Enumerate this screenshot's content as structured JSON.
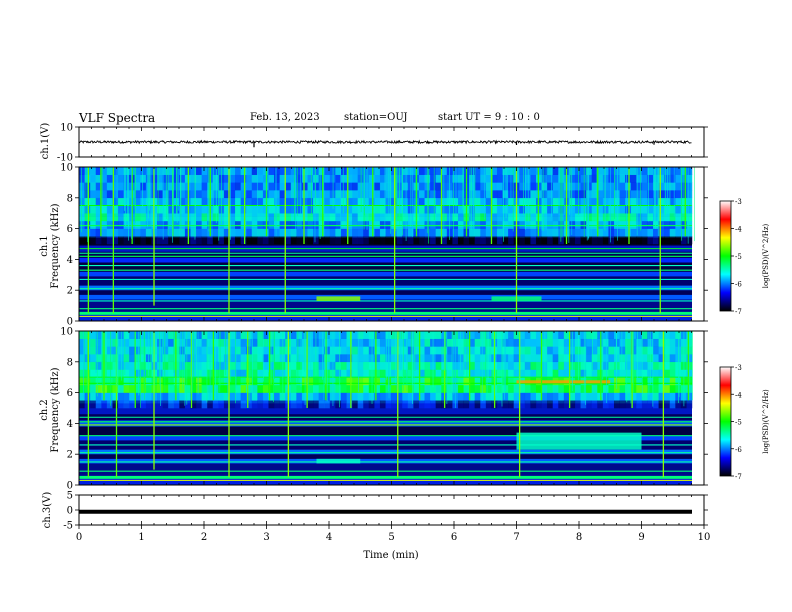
{
  "header": {
    "title": "VLF Spectra",
    "date": "Feb. 13, 2023",
    "station": "station=OUJ",
    "start": "start  UT =   9 : 10 : 0"
  },
  "colorbar": {
    "label": "log(PSD)(V^2/Hz)",
    "ticks": [
      "-3",
      "-4",
      "-5",
      "-6",
      "-7"
    ],
    "colors": [
      "#ffffff",
      "#ff0000",
      "#ffff00",
      "#00ff00",
      "#00ffff",
      "#0000ff",
      "#000000"
    ]
  },
  "chart_data": [
    {
      "type": "line",
      "name": "ch1-waveform",
      "ylabel": "ch.1(V)",
      "ylim": [
        -10,
        10
      ],
      "yticks": [
        "10",
        "-10"
      ],
      "xlim": [
        0,
        10
      ],
      "baseline": 0,
      "trace_color": "#000000",
      "spikes": [
        {
          "x": 2.8,
          "y": -3.5
        },
        {
          "x": 7.0,
          "y": -2.0
        },
        {
          "x": 9.2,
          "y": -1.8
        }
      ]
    },
    {
      "type": "heatmap",
      "name": "ch1-spectrogram",
      "ylabel_1": "ch.1",
      "ylabel_2": "Frequency (kHz)",
      "ylim": [
        0,
        10
      ],
      "xlim": [
        0,
        9.85
      ],
      "yticks": [
        "0",
        "2",
        "4",
        "6",
        "8",
        "10"
      ],
      "zlim": [
        -7,
        -3
      ],
      "bands": [
        {
          "f0": 0.0,
          "f1": 0.4,
          "level": -6.3
        },
        {
          "f0": 0.4,
          "f1": 0.6,
          "level": -5.0
        },
        {
          "f0": 0.6,
          "f1": 1.4,
          "level": -6.6
        },
        {
          "f0": 1.4,
          "f1": 1.7,
          "level": -6.0
        },
        {
          "f0": 1.7,
          "f1": 2.0,
          "level": -6.8
        },
        {
          "f0": 2.0,
          "f1": 2.3,
          "level": -5.9
        },
        {
          "f0": 2.3,
          "f1": 2.9,
          "level": -6.7
        },
        {
          "f0": 2.9,
          "f1": 3.2,
          "level": -6.1
        },
        {
          "f0": 3.2,
          "f1": 3.8,
          "level": -6.9
        },
        {
          "f0": 3.8,
          "f1": 4.1,
          "level": -6.2
        },
        {
          "f0": 4.1,
          "f1": 4.5,
          "level": -6.8
        },
        {
          "f0": 4.5,
          "f1": 4.9,
          "level": -6.4
        },
        {
          "f0": 4.9,
          "f1": 5.4,
          "level": -7.0
        },
        {
          "f0": 5.4,
          "f1": 6.1,
          "level": -5.8
        },
        {
          "f0": 6.1,
          "f1": 6.8,
          "level": -5.3
        },
        {
          "f0": 6.8,
          "f1": 8.0,
          "level": -5.6
        },
        {
          "f0": 8.0,
          "f1": 10.0,
          "level": -5.8
        }
      ],
      "lines": [
        {
          "f": 0.3,
          "level": -4.2
        },
        {
          "f": 0.8,
          "level": -5.0
        },
        {
          "f": 1.3,
          "level": -5.2
        },
        {
          "f": 2.1,
          "level": -5.1
        },
        {
          "f": 2.7,
          "level": -5.3
        },
        {
          "f": 3.3,
          "level": -5.0
        },
        {
          "f": 3.6,
          "level": -5.2
        },
        {
          "f": 4.2,
          "level": -4.9
        },
        {
          "f": 4.4,
          "level": -5.1
        },
        {
          "f": 4.7,
          "level": -4.8
        },
        {
          "f": 6.2,
          "level": -4.9
        },
        {
          "f": 7.5,
          "level": -4.7
        }
      ],
      "patches": [
        {
          "t0": 3.8,
          "t1": 4.5,
          "f0": 1.3,
          "f1": 1.6,
          "level": -4.4
        },
        {
          "t0": 6.6,
          "t1": 7.4,
          "f0": 1.3,
          "f1": 1.6,
          "level": -5.0
        }
      ],
      "bursts": [
        {
          "t": 0.15,
          "f0": 0.5,
          "level": -4.5
        },
        {
          "t": 0.35,
          "f0": 5.5,
          "level": -4.6
        },
        {
          "t": 0.55,
          "f0": 0.5,
          "level": -4.5
        },
        {
          "t": 0.85,
          "f0": 5.0,
          "level": -4.6
        },
        {
          "t": 1.2,
          "f0": 1.0,
          "level": -4.4
        },
        {
          "t": 1.5,
          "f0": 5.5,
          "level": -4.6
        },
        {
          "t": 1.75,
          "f0": 5.0,
          "level": -4.5
        },
        {
          "t": 2.1,
          "f0": 5.5,
          "level": -4.6
        },
        {
          "t": 2.4,
          "f0": 0.5,
          "level": -4.4
        },
        {
          "t": 2.65,
          "f0": 5.0,
          "level": -4.5
        },
        {
          "t": 3.0,
          "f0": 5.5,
          "level": -4.6
        },
        {
          "t": 3.3,
          "f0": 0.5,
          "level": -4.4
        },
        {
          "t": 3.6,
          "f0": 5.0,
          "level": -4.5
        },
        {
          "t": 3.9,
          "f0": 5.5,
          "level": -4.6
        },
        {
          "t": 4.3,
          "f0": 5.0,
          "level": -4.5
        },
        {
          "t": 4.7,
          "f0": 5.5,
          "level": -4.6
        },
        {
          "t": 5.05,
          "f0": 0.5,
          "level": -4.4
        },
        {
          "t": 5.4,
          "f0": 5.5,
          "level": -4.6
        },
        {
          "t": 5.8,
          "f0": 5.0,
          "level": -4.5
        },
        {
          "t": 6.2,
          "f0": 5.5,
          "level": -4.6
        },
        {
          "t": 6.6,
          "f0": 5.0,
          "level": -4.5
        },
        {
          "t": 7.0,
          "f0": 0.5,
          "level": -4.4
        },
        {
          "t": 7.35,
          "f0": 5.5,
          "level": -4.6
        },
        {
          "t": 7.8,
          "f0": 5.0,
          "level": -4.5
        },
        {
          "t": 8.3,
          "f0": 5.5,
          "level": -4.6
        },
        {
          "t": 8.8,
          "f0": 5.0,
          "level": -4.5
        },
        {
          "t": 9.3,
          "f0": 0.5,
          "level": -4.4
        },
        {
          "t": 9.7,
          "f0": 5.5,
          "level": -4.6
        }
      ]
    },
    {
      "type": "heatmap",
      "name": "ch2-spectrogram",
      "ylabel_1": "ch.2",
      "ylabel_2": "Frequency (kHz)",
      "ylim": [
        0,
        10
      ],
      "xlim": [
        0,
        9.85
      ],
      "yticks": [
        "0",
        "2",
        "4",
        "6",
        "8",
        "10"
      ],
      "zlim": [
        -7,
        -3
      ],
      "bands": [
        {
          "f0": 0.0,
          "f1": 0.4,
          "level": -6.3
        },
        {
          "f0": 0.4,
          "f1": 0.6,
          "level": -5.0
        },
        {
          "f0": 0.6,
          "f1": 1.4,
          "level": -6.6
        },
        {
          "f0": 1.4,
          "f1": 1.7,
          "level": -6.0
        },
        {
          "f0": 1.7,
          "f1": 2.0,
          "level": -6.8
        },
        {
          "f0": 2.0,
          "f1": 2.3,
          "level": -5.9
        },
        {
          "f0": 2.3,
          "f1": 2.9,
          "level": -6.7
        },
        {
          "f0": 2.9,
          "f1": 3.2,
          "level": -6.1
        },
        {
          "f0": 3.2,
          "f1": 3.8,
          "level": -6.9
        },
        {
          "f0": 3.8,
          "f1": 4.2,
          "level": -6.0
        },
        {
          "f0": 4.2,
          "f1": 4.6,
          "level": -6.8
        },
        {
          "f0": 4.6,
          "f1": 5.3,
          "level": -6.4
        },
        {
          "f0": 5.3,
          "f1": 6.0,
          "level": -5.6
        },
        {
          "f0": 6.0,
          "f1": 6.9,
          "level": -4.9
        },
        {
          "f0": 6.9,
          "f1": 8.0,
          "level": -5.3
        },
        {
          "f0": 8.0,
          "f1": 10.0,
          "level": -5.5
        }
      ],
      "lines": [
        {
          "f": 0.3,
          "level": -4.2
        },
        {
          "f": 0.9,
          "level": -5.0
        },
        {
          "f": 1.5,
          "level": -5.1
        },
        {
          "f": 2.1,
          "level": -5.1
        },
        {
          "f": 2.6,
          "level": -5.2
        },
        {
          "f": 3.2,
          "level": -5.0
        },
        {
          "f": 3.9,
          "level": -4.4
        },
        {
          "f": 4.1,
          "level": -4.9
        },
        {
          "f": 4.4,
          "level": -5.1
        },
        {
          "f": 6.6,
          "level": -4.7
        },
        {
          "f": 7.0,
          "level": -4.8
        }
      ],
      "patches": [
        {
          "t0": 3.8,
          "t1": 4.5,
          "f0": 1.4,
          "f1": 1.7,
          "level": -5.2
        },
        {
          "t0": 7.0,
          "t1": 9.0,
          "f0": 2.3,
          "f1": 3.4,
          "level": -5.2
        },
        {
          "t0": 7.0,
          "t1": 8.5,
          "f0": 6.6,
          "f1": 6.8,
          "level": -3.8
        }
      ],
      "bursts": [
        {
          "t": 0.15,
          "f0": 0.5,
          "level": -4.5
        },
        {
          "t": 0.4,
          "f0": 5.5,
          "level": -4.6
        },
        {
          "t": 0.6,
          "f0": 0.5,
          "level": -4.5
        },
        {
          "t": 0.9,
          "f0": 5.0,
          "level": -4.6
        },
        {
          "t": 1.2,
          "f0": 1.0,
          "level": -4.4
        },
        {
          "t": 1.55,
          "f0": 5.5,
          "level": -4.6
        },
        {
          "t": 1.8,
          "f0": 5.0,
          "level": -4.5
        },
        {
          "t": 2.15,
          "f0": 5.5,
          "level": -4.6
        },
        {
          "t": 2.4,
          "f0": 0.5,
          "level": -4.4
        },
        {
          "t": 2.7,
          "f0": 5.0,
          "level": -4.5
        },
        {
          "t": 3.05,
          "f0": 5.5,
          "level": -4.6
        },
        {
          "t": 3.35,
          "f0": 0.5,
          "level": -4.4
        },
        {
          "t": 3.65,
          "f0": 5.0,
          "level": -4.5
        },
        {
          "t": 3.95,
          "f0": 5.5,
          "level": -4.6
        },
        {
          "t": 4.35,
          "f0": 5.0,
          "level": -4.5
        },
        {
          "t": 4.75,
          "f0": 5.5,
          "level": -4.6
        },
        {
          "t": 5.1,
          "f0": 0.5,
          "level": -4.4
        },
        {
          "t": 5.45,
          "f0": 5.5,
          "level": -4.6
        },
        {
          "t": 5.85,
          "f0": 5.0,
          "level": -4.5
        },
        {
          "t": 6.25,
          "f0": 5.5,
          "level": -4.6
        },
        {
          "t": 6.65,
          "f0": 5.0,
          "level": -4.5
        },
        {
          "t": 7.05,
          "f0": 0.5,
          "level": -4.4
        },
        {
          "t": 7.4,
          "f0": 5.5,
          "level": -4.6
        },
        {
          "t": 7.85,
          "f0": 5.0,
          "level": -4.5
        },
        {
          "t": 8.35,
          "f0": 5.5,
          "level": -4.6
        },
        {
          "t": 8.85,
          "f0": 5.0,
          "level": -4.5
        },
        {
          "t": 9.35,
          "f0": 0.5,
          "level": -4.4
        },
        {
          "t": 9.75,
          "f0": 5.5,
          "level": -4.6
        }
      ]
    },
    {
      "type": "line",
      "name": "ch3-waveform",
      "ylabel": "ch.3(V)",
      "ylim": [
        -5,
        5
      ],
      "yticks": [
        "5",
        "0",
        "-5"
      ],
      "xlim": [
        0,
        10
      ],
      "baseline": -0.6,
      "trace_color": "#000000",
      "xlabel": "Time (min)",
      "xticks": [
        "0",
        "1",
        "2",
        "3",
        "4",
        "5",
        "6",
        "7",
        "8",
        "9",
        "10"
      ]
    }
  ]
}
